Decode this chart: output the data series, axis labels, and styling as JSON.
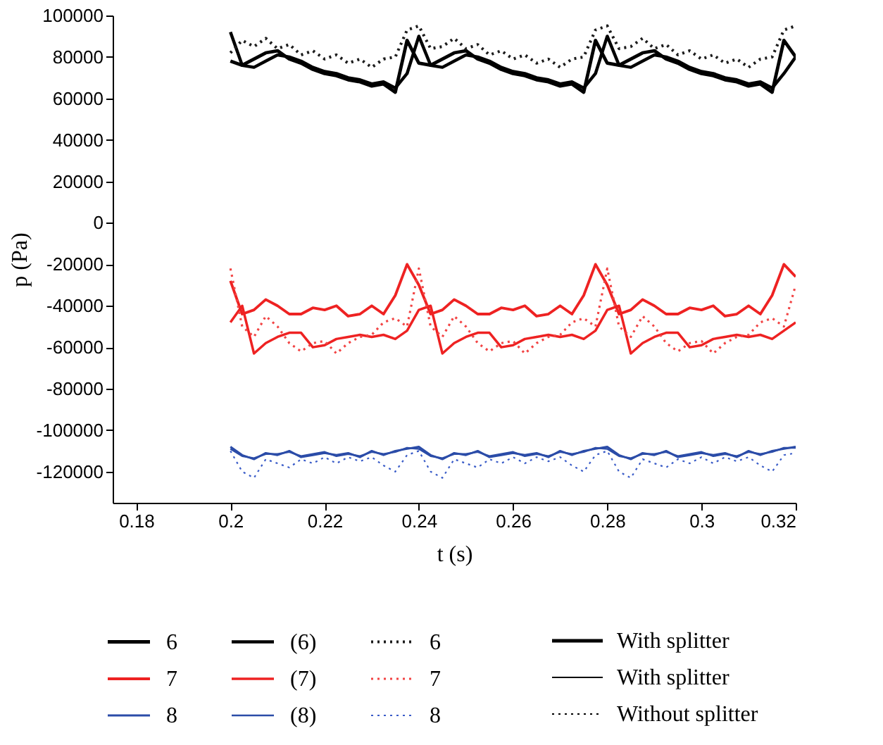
{
  "chart_data": {
    "type": "line",
    "xlabel": "t (s)",
    "ylabel": "p (Pa)",
    "x": [
      0.2,
      0.2025,
      0.205,
      0.2075,
      0.21,
      0.2125,
      0.215,
      0.2175,
      0.22,
      0.2225,
      0.225,
      0.2275,
      0.23,
      0.2325,
      0.235,
      0.2375,
      0.24,
      0.2425,
      0.245,
      0.2475,
      0.25,
      0.2525,
      0.255,
      0.2575,
      0.26,
      0.2625,
      0.265,
      0.2675,
      0.27,
      0.2725,
      0.275,
      0.2775,
      0.28,
      0.2825,
      0.285,
      0.2875,
      0.29,
      0.2925,
      0.295,
      0.2975,
      0.3,
      0.3025,
      0.305,
      0.3075,
      0.31,
      0.3125,
      0.315,
      0.3175,
      0.32
    ],
    "series": [
      {
        "name": "6",
        "color": "#000000",
        "line_style": "solid",
        "values": [
          78000,
          76000,
          79000,
          82000,
          83000,
          79000,
          77000,
          74000,
          72000,
          71000,
          69000,
          68000,
          66000,
          67000,
          63000,
          88000,
          77000,
          76000,
          79000,
          82000,
          83000,
          79000,
          77000,
          74000,
          72000,
          71000,
          69000,
          68000,
          66000,
          67000,
          63000,
          88000,
          77000,
          76000,
          79000,
          82000,
          83000,
          79000,
          77000,
          74000,
          72000,
          71000,
          69000,
          68000,
          66000,
          67000,
          63000,
          88000,
          80000
        ]
      },
      {
        "name": "(6)",
        "color": "#000000",
        "line_style": "solid",
        "values": [
          92000,
          76000,
          75000,
          78000,
          81000,
          80000,
          78000,
          75000,
          73000,
          72000,
          70000,
          69000,
          67000,
          68000,
          65000,
          72000,
          90000,
          76000,
          75000,
          78000,
          81000,
          80000,
          78000,
          75000,
          73000,
          72000,
          70000,
          69000,
          67000,
          68000,
          65000,
          72000,
          90000,
          76000,
          75000,
          78000,
          81000,
          80000,
          78000,
          75000,
          73000,
          72000,
          70000,
          69000,
          67000,
          68000,
          65000,
          72000,
          80000
        ]
      },
      {
        "name": "6",
        "color": "#1c1c1c",
        "line_style": "dotted",
        "values": [
          82000,
          88000,
          85000,
          89000,
          84000,
          86000,
          81000,
          83000,
          79000,
          81000,
          77000,
          79000,
          75000,
          79000,
          80000,
          93000,
          95000,
          84000,
          85000,
          89000,
          84000,
          86000,
          81000,
          83000,
          79000,
          81000,
          77000,
          79000,
          75000,
          79000,
          80000,
          93000,
          95000,
          84000,
          85000,
          89000,
          84000,
          86000,
          81000,
          83000,
          79000,
          81000,
          77000,
          79000,
          75000,
          79000,
          80000,
          93000,
          95000
        ]
      },
      {
        "name": "7",
        "color": "#ee2222",
        "line_style": "solid",
        "values": [
          -28000,
          -44000,
          -42000,
          -37000,
          -40000,
          -44000,
          -44000,
          -41000,
          -42000,
          -40000,
          -45000,
          -44000,
          -40000,
          -44000,
          -35000,
          -20000,
          -30000,
          -44000,
          -42000,
          -37000,
          -40000,
          -44000,
          -44000,
          -41000,
          -42000,
          -40000,
          -45000,
          -44000,
          -40000,
          -44000,
          -35000,
          -20000,
          -30000,
          -44000,
          -42000,
          -37000,
          -40000,
          -44000,
          -44000,
          -41000,
          -42000,
          -40000,
          -45000,
          -44000,
          -40000,
          -44000,
          -35000,
          -20000,
          -26000
        ]
      },
      {
        "name": "(7)",
        "color": "#ee2222",
        "line_style": "solid",
        "values": [
          -48000,
          -40000,
          -63000,
          -58000,
          -55000,
          -53000,
          -53000,
          -60000,
          -59000,
          -56000,
          -55000,
          -54000,
          -55000,
          -54000,
          -56000,
          -52000,
          -42000,
          -40000,
          -63000,
          -58000,
          -55000,
          -53000,
          -53000,
          -60000,
          -59000,
          -56000,
          -55000,
          -54000,
          -55000,
          -54000,
          -56000,
          -52000,
          -42000,
          -40000,
          -63000,
          -58000,
          -55000,
          -53000,
          -53000,
          -60000,
          -59000,
          -56000,
          -55000,
          -54000,
          -55000,
          -54000,
          -56000,
          -52000,
          -48000
        ]
      },
      {
        "name": "7",
        "color": "#f24444",
        "line_style": "dotted",
        "values": [
          -22000,
          -50000,
          -55000,
          -45000,
          -50000,
          -58000,
          -62000,
          -58000,
          -57000,
          -63000,
          -58000,
          -55000,
          -54000,
          -48000,
          -46000,
          -50000,
          -22000,
          -50000,
          -55000,
          -45000,
          -50000,
          -58000,
          -62000,
          -58000,
          -57000,
          -63000,
          -58000,
          -55000,
          -54000,
          -48000,
          -46000,
          -50000,
          -22000,
          -50000,
          -55000,
          -45000,
          -50000,
          -58000,
          -62000,
          -58000,
          -57000,
          -63000,
          -58000,
          -55000,
          -54000,
          -48000,
          -46000,
          -50000,
          -30000
        ]
      },
      {
        "name": "8",
        "color": "#2b4ca8",
        "line_style": "solid",
        "values": [
          -108000,
          -112000,
          -114000,
          -111000,
          -112000,
          -110000,
          -113000,
          -112000,
          -111000,
          -112000,
          -111000,
          -113000,
          -110000,
          -112000,
          -110000,
          -109000,
          -108000,
          -112000,
          -114000,
          -111000,
          -112000,
          -110000,
          -113000,
          -112000,
          -111000,
          -112000,
          -111000,
          -113000,
          -110000,
          -112000,
          -110000,
          -109000,
          -108000,
          -112000,
          -114000,
          -111000,
          -112000,
          -110000,
          -113000,
          -112000,
          -111000,
          -112000,
          -111000,
          -113000,
          -110000,
          -112000,
          -110000,
          -109000,
          -108000
        ]
      },
      {
        "name": "(8)",
        "color": "#2b4ca8",
        "line_style": "solid",
        "values": [
          -109000,
          -112500,
          -113500,
          -111500,
          -111500,
          -110500,
          -112500,
          -111500,
          -110500,
          -112500,
          -111500,
          -112500,
          -110500,
          -111500,
          -110500,
          -108500,
          -109000,
          -112500,
          -113500,
          -111500,
          -111500,
          -110500,
          -112500,
          -111500,
          -110500,
          -112500,
          -111500,
          -112500,
          -110500,
          -111500,
          -110500,
          -108500,
          -109000,
          -112500,
          -113500,
          -111500,
          -111500,
          -110500,
          -112500,
          -111500,
          -110500,
          -112500,
          -111500,
          -112500,
          -110500,
          -111500,
          -110500,
          -108500,
          -108500
        ]
      },
      {
        "name": "8",
        "color": "#3a5cc8",
        "line_style": "dotted",
        "values": [
          -110000,
          -120000,
          -123000,
          -114000,
          -116000,
          -118000,
          -114000,
          -116000,
          -113000,
          -116000,
          -113000,
          -115000,
          -113000,
          -117000,
          -120000,
          -112000,
          -110000,
          -120000,
          -123000,
          -114000,
          -116000,
          -118000,
          -114000,
          -116000,
          -113000,
          -116000,
          -113000,
          -115000,
          -113000,
          -117000,
          -120000,
          -112000,
          -110000,
          -120000,
          -123000,
          -114000,
          -116000,
          -118000,
          -114000,
          -116000,
          -113000,
          -116000,
          -113000,
          -115000,
          -113000,
          -117000,
          -120000,
          -112000,
          -111000
        ]
      }
    ],
    "annotations": [
      "With splitter",
      "With splitter",
      "Without splitter"
    ],
    "xlim": [
      0.175,
      0.32
    ],
    "xticks": [
      0.18,
      0.2,
      0.22,
      0.24,
      0.26,
      0.28,
      0.3,
      0.32
    ],
    "ylim": [
      -135000,
      100000
    ],
    "yticks": [
      100000,
      80000,
      60000,
      40000,
      20000,
      0,
      -20000,
      -40000,
      -60000,
      -80000,
      -100000,
      -120000
    ],
    "grid": false,
    "legend": "bottom"
  }
}
